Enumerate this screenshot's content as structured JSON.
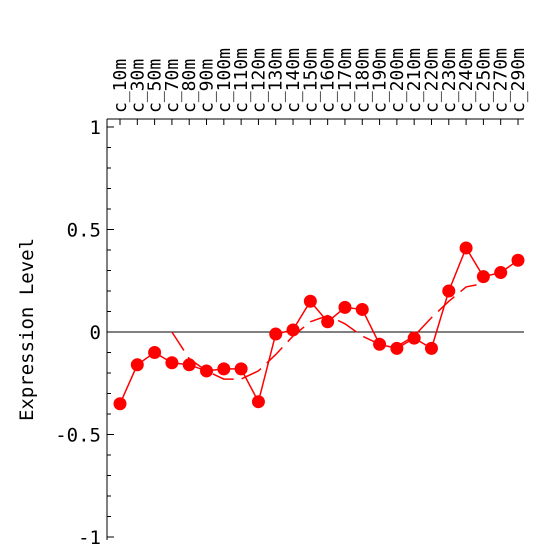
{
  "chart_data": {
    "type": "line",
    "xlabel": "",
    "ylabel": "Expression Level",
    "ylim": [
      -1,
      1
    ],
    "y_ticks": [
      {
        "value": 1,
        "label": "1"
      },
      {
        "value": 0.5,
        "label": "0.5"
      },
      {
        "value": 0,
        "label": "0"
      },
      {
        "value": -0.5,
        "label": "-0.5"
      },
      {
        "value": -1,
        "label": "-1"
      }
    ],
    "categories": [
      "c_10m",
      "c_30m",
      "c_50m",
      "c_70m",
      "c_80m",
      "c_90m",
      "c_100m",
      "c_110m",
      "c_120m",
      "c_130m",
      "c_140m",
      "c_150m",
      "c_160m",
      "c_170m",
      "c_180m",
      "c_190m",
      "c_200m",
      "c_210m",
      "c_220m",
      "c_230m",
      "c_240m",
      "c_250m",
      "c_270m",
      "c_290m"
    ],
    "series": [
      {
        "style": "solid-with-markers",
        "color": "#ff0000",
        "values": [
          -0.35,
          -0.16,
          -0.1,
          -0.15,
          -0.16,
          -0.19,
          -0.18,
          -0.18,
          -0.34,
          -0.01,
          0.01,
          0.15,
          0.05,
          0.12,
          0.11,
          -0.06,
          -0.08,
          -0.03,
          -0.08,
          0.2,
          0.41,
          0.27,
          0.29,
          0.35
        ]
      },
      {
        "style": "dashed-trend",
        "color": "#ff0000",
        "x": [
          3.0,
          4.0,
          5.0,
          6.0,
          7.0,
          8.0,
          9.0,
          10.0,
          11.0,
          12.0,
          13.0,
          14.0,
          15.0,
          16.0,
          17.0,
          18.0,
          19.0,
          20.0,
          20.6
        ],
        "values": [
          0.0,
          -0.13,
          -0.19,
          -0.23,
          -0.23,
          -0.19,
          -0.11,
          -0.02,
          0.05,
          0.08,
          0.04,
          -0.02,
          -0.06,
          -0.07,
          -0.02,
          0.07,
          0.15,
          0.22,
          0.23
        ]
      }
    ],
    "zero_line": true,
    "grid": false,
    "legend": "none"
  }
}
